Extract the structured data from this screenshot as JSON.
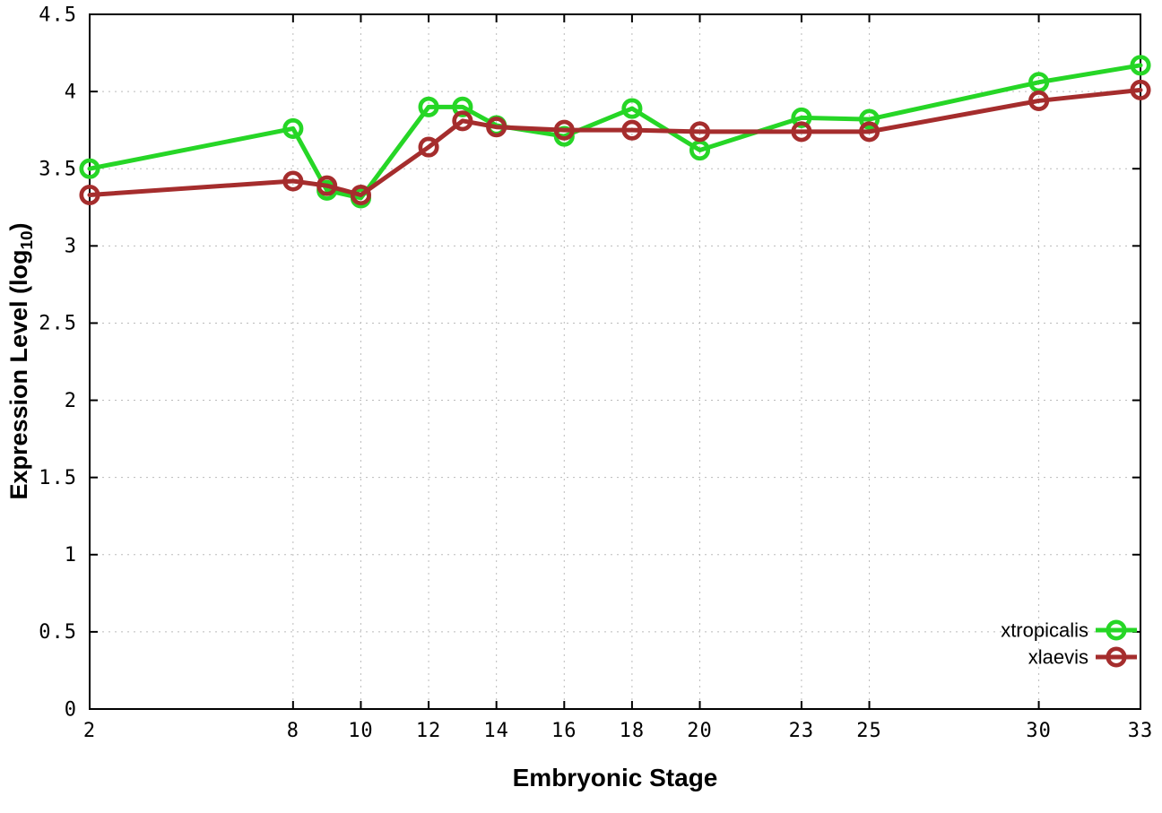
{
  "figure": {
    "background": "#ffffff",
    "border_color": "#000000",
    "grid_color": "#bbbbbb"
  },
  "chart_data": {
    "type": "line",
    "title": "",
    "xlabel": "Embryonic Stage",
    "ylabel": "Expression Level (log10)",
    "ylabel_parts": {
      "pre": "Expression Level (log",
      "sub": "10",
      "post": ")"
    },
    "xlim": [
      2,
      33
    ],
    "ylim": [
      0,
      4.5
    ],
    "grid": true,
    "legend_position": "inside bottom-right",
    "x_ticks": [
      2,
      8,
      10,
      12,
      14,
      16,
      18,
      20,
      23,
      25,
      30,
      33
    ],
    "x_tick_labels": [
      "2",
      "8",
      "10",
      "12",
      "14",
      "16",
      "18",
      "20",
      "23",
      "25",
      "30",
      "33"
    ],
    "y_ticks": [
      0,
      0.5,
      1,
      1.5,
      2,
      2.5,
      3,
      3.5,
      4,
      4.5
    ],
    "y_tick_labels": [
      "0",
      "0.5",
      "1",
      "1.5",
      "2",
      "2.5",
      "3",
      "3.5",
      "4",
      "4.5"
    ],
    "x": [
      2,
      8,
      9,
      10,
      12,
      13,
      14,
      16,
      18,
      20,
      23,
      25,
      30,
      33
    ],
    "series": [
      {
        "name": "xtropicalis",
        "color": "#26d626",
        "marker": "open-circle",
        "values": [
          3.5,
          3.76,
          3.36,
          3.31,
          3.9,
          3.9,
          3.78,
          3.71,
          3.89,
          3.62,
          3.83,
          3.82,
          4.06,
          4.17
        ]
      },
      {
        "name": "xlaevis",
        "color": "#a52d2d",
        "marker": "open-circle",
        "values": [
          3.33,
          3.42,
          3.39,
          3.33,
          3.64,
          3.81,
          3.77,
          3.75,
          3.75,
          3.74,
          3.74,
          3.74,
          3.94,
          4.01
        ]
      }
    ]
  }
}
